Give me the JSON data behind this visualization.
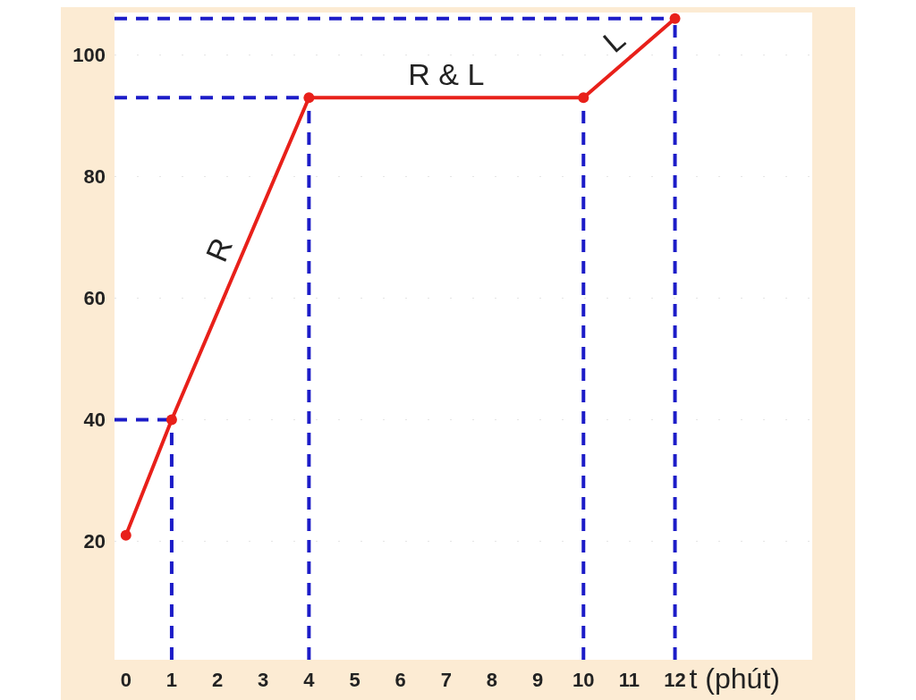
{
  "chart_data": {
    "type": "line",
    "xlabel": "t (phút)",
    "x": [
      0,
      1,
      4,
      10,
      12
    ],
    "series": [
      {
        "color": "#e8201a",
        "values": [
          21,
          40,
          93,
          93,
          106
        ]
      }
    ],
    "xlim": [
      -0.25,
      15
    ],
    "ylim": [
      0.5,
      107
    ],
    "xticks": [
      0,
      1,
      2,
      3,
      4,
      5,
      6,
      7,
      8,
      9,
      10,
      11,
      12
    ],
    "yticks": [
      20,
      40,
      60,
      80,
      100
    ],
    "grid": "y",
    "marker": "circle",
    "line_style": "solid",
    "ref_lines": [
      {
        "axis": "x",
        "value": 1,
        "color": "#1c1cc8",
        "line_style": "dashed"
      },
      {
        "axis": "x",
        "value": 4,
        "color": "#1c1cc8",
        "line_style": "dashed"
      },
      {
        "axis": "x",
        "value": 10,
        "color": "#1c1cc8",
        "line_style": "dashed"
      },
      {
        "axis": "x",
        "value": 12,
        "color": "#1c1cc8",
        "line_style": "dashed"
      },
      {
        "axis": "y",
        "value": 40,
        "color": "#1c1cc8",
        "line_style": "dashed"
      },
      {
        "axis": "y",
        "value": 93,
        "color": "#1c1cc8",
        "line_style": "dashed"
      },
      {
        "axis": "y",
        "value": 106,
        "color": "#1c1cc8",
        "line_style": "dashed"
      }
    ],
    "annotations": [
      {
        "text": "R",
        "x": 2.5,
        "y": 66.5
      },
      {
        "text": "R & L",
        "x": 7,
        "y": 93
      },
      {
        "text": "L",
        "x": 11,
        "y": 99.5
      }
    ]
  }
}
